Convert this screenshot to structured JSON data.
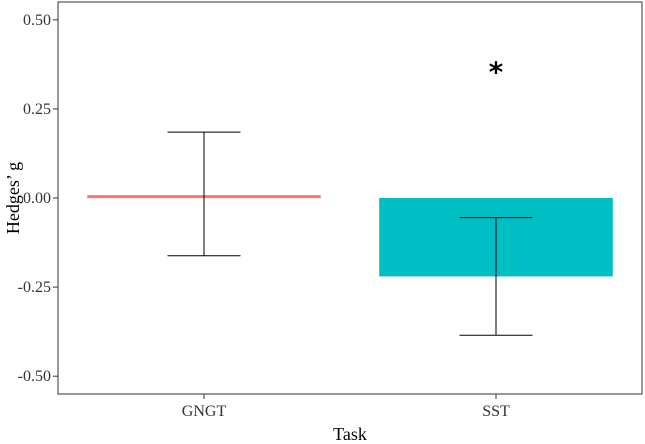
{
  "chart_data": {
    "type": "bar",
    "xlabel": "Task",
    "ylabel": "Hedges’ g",
    "categories": [
      "GNGT",
      "SST"
    ],
    "values": [
      0.008,
      -0.22
    ],
    "error_low": [
      -0.162,
      -0.385
    ],
    "error_high": [
      0.185,
      -0.055
    ],
    "colors": [
      "#F8766D",
      "#00BFC4"
    ],
    "ylim": [
      -0.55,
      0.55
    ],
    "yticks": [
      0.5,
      0.25,
      0.0,
      -0.25,
      -0.5
    ],
    "ytick_labels": [
      "0.50",
      "0.25",
      "0.00",
      "-0.25",
      "-0.50"
    ],
    "annotations": [
      {
        "category": "SST",
        "value": 0.36,
        "text": "*"
      }
    ],
    "grid": false,
    "legend": "none"
  }
}
